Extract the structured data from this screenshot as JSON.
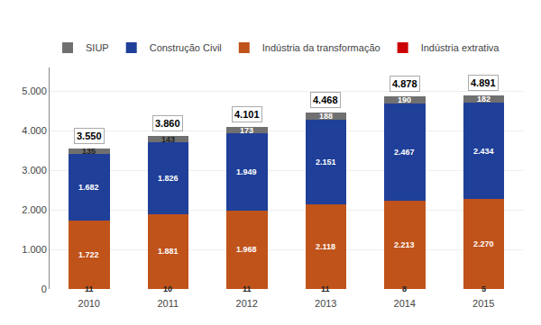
{
  "chart_data": {
    "type": "bar",
    "stacked": true,
    "categories": [
      "2010",
      "2011",
      "2012",
      "2013",
      "2014",
      "2015"
    ],
    "series": [
      {
        "name": "Indústria extrativa",
        "color": "#CC0000",
        "values": [
          11,
          10,
          11,
          11,
          8,
          5
        ]
      },
      {
        "name": "Indústria da transformação",
        "color": "#C0531A",
        "values": [
          1722,
          1881,
          1968,
          2118,
          2213,
          2270
        ],
        "value_labels": [
          "1.722",
          "1.881",
          "1.968",
          "2.118",
          "2.213",
          "2.270"
        ]
      },
      {
        "name": "Construção Civil",
        "color": "#1F3F99",
        "values": [
          1682,
          1826,
          1949,
          2151,
          2467,
          2434
        ],
        "value_labels": [
          "1.682",
          "1.826",
          "1.949",
          "2.151",
          "2.467",
          "2.434"
        ]
      },
      {
        "name": "SIUP",
        "color": "#707070",
        "values": [
          135,
          143,
          173,
          188,
          190,
          182
        ]
      }
    ],
    "totals": [
      3550,
      3860,
      4101,
      4468,
      4878,
      4891
    ],
    "total_labels": [
      "3.550",
      "3.860",
      "4.101",
      "4.468",
      "4.878",
      "4.891"
    ],
    "data_labels": true,
    "ylim": [
      0,
      5600
    ],
    "yticks": [
      0,
      {
        "value": 1000,
        "label": "1.000"
      },
      {
        "value": 2000,
        "label": "2.000"
      },
      {
        "value": 3000,
        "label": "3.000"
      },
      {
        "value": 4000,
        "label": "4.000"
      },
      {
        "value": 5000,
        "label": "5.000"
      }
    ],
    "grid": true,
    "legend": "top"
  }
}
